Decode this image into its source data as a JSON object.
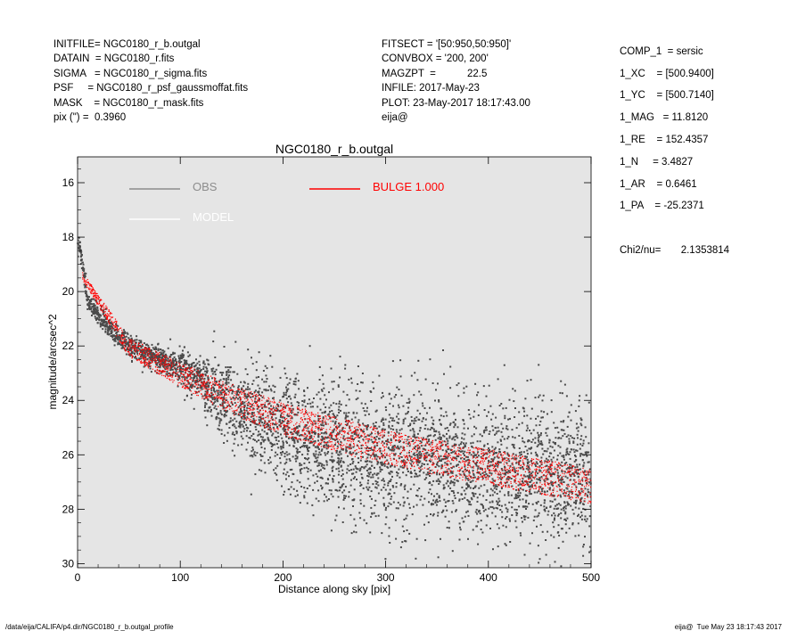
{
  "header": {
    "left": [
      "INITFILE= NGC0180_r_b.outgal",
      "DATAIN  = NGC0180_r.fits",
      "SIGMA   = NGC0180_r_sigma.fits",
      "PSF     = NGC0180_r_psf_gaussmoffat.fits",
      "MASK    = NGC0180_r_mask.fits",
      "pix (\") =  0.3960"
    ],
    "middle": [
      "FITSECT = '[50:950,50:950]'",
      "CONVBOX = '200, 200'",
      "MAGZPT  =           22.5",
      "INFILE: 2017-May-23",
      "PLOT: 23-May-2017 18:17:43.00",
      "eija@"
    ]
  },
  "params": [
    "COMP_1  = sersic",
    "1_XC    = [500.9400]",
    "1_YC    = [500.7140]",
    "1_MAG   = 11.8120",
    "1_RE    = 152.4357",
    "1_N     = 3.4827",
    "1_AR    = 0.6461",
    "1_PA    = -25.2371"
  ],
  "chi2": "Chi2/nu=       2.1353814",
  "footer": {
    "left": "/data/eija/CALIFA/p4.dir/NGC0180_r_b.outgal_profile",
    "right": "eija@  Tue May 23 18:17:43 2017"
  },
  "colors": {
    "plot_background": "#e5e5e5",
    "obs": "#4a4a4a",
    "obs_legend": "#8c8c8c",
    "model": "#ffffff",
    "bulge": "#ff0000"
  },
  "chart_data": {
    "type": "scatter",
    "title": "NGC0180_r_b.outgal",
    "xlabel": "Distance along sky [pix]",
    "ylabel": "magnitude/arcsec^2",
    "xlim": [
      0,
      500
    ],
    "ylim": [
      30,
      15
    ],
    "y_inverted": true,
    "xticks": [
      0,
      100,
      200,
      300,
      400,
      500
    ],
    "yticks": [
      16,
      18,
      20,
      22,
      24,
      26,
      28,
      30
    ],
    "grid": false,
    "legend_placement": "top-left",
    "legend": [
      {
        "label": "OBS",
        "color": "#8c8c8c"
      },
      {
        "label": "MODEL",
        "color": "#ffffff"
      },
      {
        "label": "BULGE  1.000",
        "color": "#ff0000"
      }
    ],
    "series": [
      {
        "name": "OBS",
        "description_points": [
          [
            2,
            18.3
          ],
          [
            10,
            20.4
          ],
          [
            30,
            21.3
          ],
          [
            50,
            22.0
          ],
          [
            100,
            22.8
          ],
          [
            150,
            24.0
          ],
          [
            200,
            25.0
          ],
          [
            250,
            25.7
          ],
          [
            300,
            26.0
          ],
          [
            400,
            26.5
          ],
          [
            500,
            26.8
          ]
        ],
        "scatter_sigma": [
          [
            0,
            0.15
          ],
          [
            100,
            0.3
          ],
          [
            160,
            0.9
          ],
          [
            250,
            1.2
          ],
          [
            500,
            1.3
          ]
        ]
      },
      {
        "name": "BULGE  1.000",
        "upper_edge": [
          [
            5,
            19.3
          ],
          [
            50,
            21.7
          ],
          [
            100,
            22.6
          ],
          [
            150,
            23.4
          ],
          [
            200,
            24.1
          ],
          [
            300,
            25.1
          ],
          [
            400,
            25.8
          ],
          [
            500,
            26.5
          ]
        ],
        "lower_edge": [
          [
            5,
            19.6
          ],
          [
            50,
            22.4
          ],
          [
            100,
            23.5
          ],
          [
            150,
            24.5
          ],
          [
            200,
            25.3
          ],
          [
            300,
            26.4
          ],
          [
            400,
            27.1
          ],
          [
            500,
            27.8
          ]
        ]
      }
    ]
  }
}
